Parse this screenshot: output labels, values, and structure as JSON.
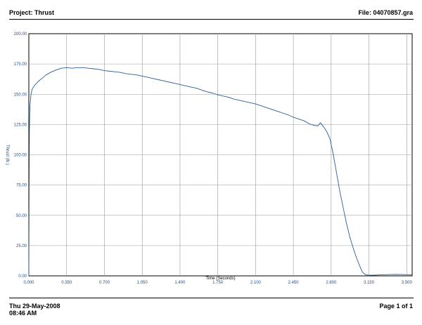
{
  "header": {
    "project": "Project: Thrust",
    "file": "File: 04070857.gra"
  },
  "footer": {
    "date": "Thu 29-May-2008",
    "time": "08:46 AM",
    "page": "Page 1 of 1"
  },
  "colors": {
    "series": "#2a5d96",
    "tick_labels": "#1f4e8c",
    "grid": "#9a9a9a"
  },
  "chart_data": {
    "type": "line",
    "title": "",
    "xlabel": "Time (Seconds)",
    "ylabel": "Thrust (lb.)",
    "xlim": [
      0,
      3.55
    ],
    "ylim": [
      0,
      200
    ],
    "grid": true,
    "x_ticks": [
      "0.000",
      "0.350",
      "0.700",
      "1.050",
      "1.400",
      "1.750",
      "2.100",
      "2.450",
      "2.800",
      "3.150",
      "3.500"
    ],
    "x_tick_values": [
      0,
      0.35,
      0.7,
      1.05,
      1.4,
      1.75,
      2.1,
      2.45,
      2.8,
      3.15,
      3.5
    ],
    "y_ticks": [
      "0.00",
      "25.00",
      "50.00",
      "75.00",
      "100.00",
      "125.00",
      "150.00",
      "175.00",
      "200.00"
    ],
    "y_tick_values": [
      0,
      25,
      50,
      75,
      100,
      125,
      150,
      175,
      200
    ],
    "series": [
      {
        "x": [
          0.0,
          0.005,
          0.01,
          0.02,
          0.03,
          0.05,
          0.08,
          0.12,
          0.16,
          0.2,
          0.25,
          0.3,
          0.35,
          0.4,
          0.45,
          0.5,
          0.55,
          0.6,
          0.65,
          0.7,
          0.75,
          0.8,
          0.85,
          0.9,
          0.95,
          1.0,
          1.05,
          1.1,
          1.15,
          1.2,
          1.25,
          1.3,
          1.35,
          1.4,
          1.45,
          1.5,
          1.55,
          1.6,
          1.65,
          1.7,
          1.75,
          1.8,
          1.85,
          1.9,
          1.95,
          2.0,
          2.05,
          2.1,
          2.15,
          2.2,
          2.25,
          2.3,
          2.35,
          2.4,
          2.45,
          2.5,
          2.55,
          2.6,
          2.65,
          2.68,
          2.7,
          2.73,
          2.76,
          2.79,
          2.82,
          2.85,
          2.88,
          2.91,
          2.94,
          2.97,
          3.0,
          3.03,
          3.06,
          3.09,
          3.12,
          3.15,
          3.18,
          3.2,
          3.25,
          3.3,
          3.35,
          3.4,
          3.45,
          3.5,
          3.55
        ],
        "y": [
          0.0,
          120.0,
          140.0,
          150.0,
          154.0,
          157.0,
          160.0,
          163.0,
          166.0,
          168.0,
          170.0,
          171.5,
          172.0,
          171.5,
          172.0,
          172.0,
          171.5,
          171.0,
          170.5,
          169.5,
          169.0,
          168.5,
          168.0,
          167.0,
          166.5,
          166.0,
          165.0,
          164.0,
          163.0,
          162.0,
          161.0,
          160.0,
          159.0,
          158.0,
          157.0,
          156.0,
          155.0,
          153.5,
          152.0,
          151.0,
          149.5,
          148.5,
          147.5,
          146.0,
          145.0,
          144.0,
          143.0,
          142.0,
          140.5,
          139.0,
          137.5,
          136.0,
          134.5,
          133.0,
          131.0,
          129.5,
          128.0,
          125.5,
          124.0,
          124.0,
          126.5,
          123.0,
          119.0,
          113.0,
          100.0,
          85.0,
          70.0,
          57.0,
          44.0,
          33.0,
          24.0,
          16.0,
          9.0,
          3.0,
          0.8,
          0.5,
          0.5,
          0.6,
          0.8,
          1.0,
          1.1,
          1.2,
          1.1,
          1.0,
          0.9
        ]
      }
    ]
  }
}
